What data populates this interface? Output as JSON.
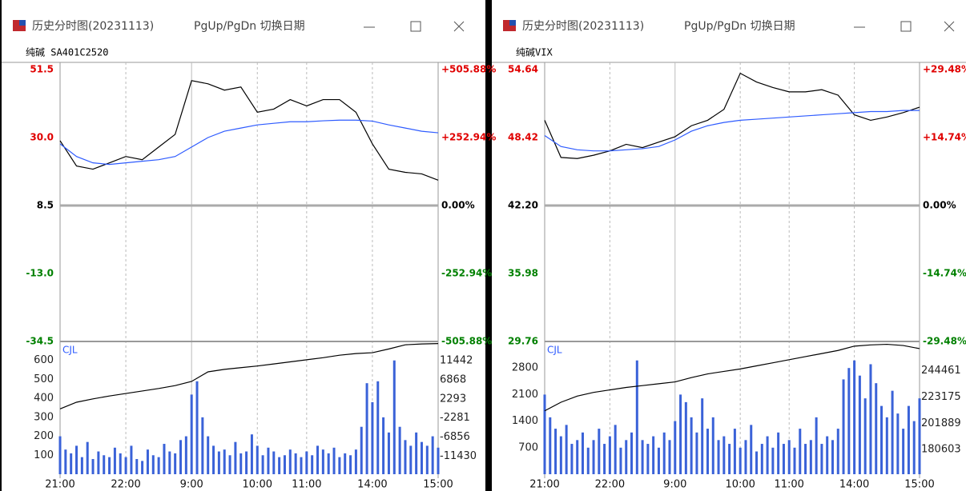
{
  "windows": [
    {
      "title": "历史分时图(20231113)",
      "hint": "PgUp/PgDn 切换日期"
    },
    {
      "title": "历史分时图(20231113)",
      "hint": "PgUp/PgDn 切换日期"
    }
  ],
  "chart_data": [
    {
      "type": "line",
      "subtitle": "纯碱 SA401C2520",
      "x": [
        0,
        15,
        30,
        45,
        60,
        75,
        90,
        105,
        120,
        135,
        150,
        165,
        180,
        195,
        210,
        225,
        240,
        255,
        270,
        285,
        300,
        315,
        330,
        345
      ],
      "xlim": [
        0,
        345
      ],
      "xticks": [
        {
          "value": 0,
          "label": "21:00"
        },
        {
          "value": 60,
          "label": "22:00"
        },
        {
          "value": 120,
          "label": "9:00"
        },
        {
          "value": 180,
          "label": "10:00"
        },
        {
          "value": 225,
          "label": "11:00"
        },
        {
          "value": 285,
          "label": "14:00"
        },
        {
          "value": 345,
          "label": "15:00"
        }
      ],
      "ylim": [
        -34.5,
        51.5
      ],
      "yticks": [
        51.5,
        {
          "value": 30,
          "label": "30.0"
        },
        8.5,
        {
          "value": -13,
          "label": "-13.0"
        },
        -34.5
      ],
      "y2lim": [
        -505.88,
        505.88
      ],
      "y2ticks": [
        {
          "value": 505.88,
          "label": "+505.88%"
        },
        {
          "value": 252.94,
          "label": "+252.94%"
        },
        {
          "value": 0,
          "label": "0.00%"
        },
        {
          "value": -252.94,
          "label": "-252.94%"
        },
        {
          "value": -505.88,
          "label": "-505.88%"
        }
      ],
      "grid": "x",
      "series": [
        {
          "color": "#000000",
          "values": [
            29,
            21,
            20,
            22,
            24,
            23,
            27,
            31,
            48,
            47,
            45,
            46,
            38,
            39,
            42,
            40,
            42,
            42,
            38,
            28,
            20,
            19,
            18.5,
            16.5
          ]
        },
        {
          "color": "#2e5bff",
          "values": [
            28,
            24,
            22,
            21.5,
            22,
            22.5,
            23,
            24,
            27,
            30,
            32,
            33,
            34,
            34.5,
            35,
            35,
            35.3,
            35.5,
            35.5,
            35.2,
            34,
            33,
            32,
            31.5
          ]
        }
      ],
      "volume": {
        "label": "CJL",
        "color": "#3a62d8",
        "ylim": [
          0,
          700
        ],
        "yticks": [
          600,
          500,
          400,
          300,
          200,
          100
        ],
        "y2lim": [
          -15800,
          16100
        ],
        "y2ticks": [
          11442,
          6868,
          2293,
          -2281,
          -6856,
          -11430
        ],
        "x": [
          0,
          5,
          10,
          15,
          20,
          25,
          30,
          35,
          40,
          45,
          50,
          55,
          60,
          65,
          70,
          75,
          80,
          85,
          90,
          95,
          100,
          105,
          110,
          115,
          120,
          125,
          130,
          135,
          140,
          145,
          150,
          155,
          160,
          165,
          170,
          175,
          180,
          185,
          190,
          195,
          200,
          205,
          210,
          215,
          220,
          225,
          230,
          235,
          240,
          245,
          250,
          255,
          260,
          265,
          270,
          275,
          280,
          285,
          290,
          295,
          300,
          305,
          310,
          315,
          320,
          325,
          330,
          335,
          340,
          345
        ],
        "values": [
          200,
          130,
          110,
          150,
          90,
          170,
          80,
          120,
          100,
          90,
          140,
          110,
          90,
          150,
          80,
          70,
          130,
          100,
          90,
          160,
          120,
          110,
          180,
          200,
          420,
          490,
          300,
          200,
          150,
          120,
          130,
          100,
          170,
          110,
          120,
          210,
          150,
          100,
          140,
          120,
          90,
          100,
          130,
          110,
          90,
          120,
          100,
          150,
          130,
          110,
          140,
          90,
          110,
          100,
          130,
          250,
          480,
          380,
          490,
          300,
          220,
          600,
          250,
          180,
          150,
          220,
          170,
          150,
          200,
          140
        ],
        "line": {
          "color": "#000000",
          "values": [
            -100,
            1500,
            2300,
            3000,
            3600,
            4200,
            4800,
            5500,
            6500,
            8800,
            9400,
            9800,
            10200,
            10700,
            11200,
            11700,
            12200,
            12800,
            13200,
            13400,
            14300,
            15300,
            15500,
            15600
          ]
        }
      }
    },
    {
      "type": "line",
      "subtitle": "纯碱VIX",
      "x": [
        0,
        15,
        30,
        45,
        60,
        75,
        90,
        105,
        120,
        135,
        150,
        165,
        180,
        195,
        210,
        225,
        240,
        255,
        270,
        285,
        300,
        315,
        330,
        345
      ],
      "xlim": [
        0,
        345
      ],
      "xticks": [
        {
          "value": 0,
          "label": "21:00"
        },
        {
          "value": 60,
          "label": "22:00"
        },
        {
          "value": 120,
          "label": "9:00"
        },
        {
          "value": 180,
          "label": "10:00"
        },
        {
          "value": 225,
          "label": "11:00"
        },
        {
          "value": 285,
          "label": "14:00"
        },
        {
          "value": 345,
          "label": "15:00"
        }
      ],
      "ylim": [
        29.76,
        54.64
      ],
      "yticks": [
        54.64,
        48.42,
        {
          "value": 42.2,
          "label": "42.20"
        },
        35.98,
        29.76
      ],
      "y2lim": [
        -29.48,
        29.48
      ],
      "y2ticks": [
        {
          "value": 29.48,
          "label": "+29.48%"
        },
        {
          "value": 14.74,
          "label": "+14.74%"
        },
        {
          "value": 0,
          "label": "0.00%"
        },
        {
          "value": -14.74,
          "label": "-14.74%"
        },
        {
          "value": -29.48,
          "label": "-29.48%"
        }
      ],
      "grid": "x",
      "series": [
        {
          "color": "#000000",
          "values": [
            50,
            46.6,
            46.5,
            46.8,
            47.2,
            47.8,
            47.5,
            48,
            48.5,
            49.5,
            50,
            51,
            54.3,
            53.5,
            53,
            52.6,
            52.6,
            52.8,
            52.3,
            50.5,
            50,
            50.3,
            50.7,
            51.2
          ]
        },
        {
          "color": "#2e5bff",
          "values": [
            48.6,
            47.6,
            47.3,
            47.2,
            47.2,
            47.3,
            47.4,
            47.6,
            48.2,
            49,
            49.5,
            49.8,
            50,
            50.1,
            50.2,
            50.3,
            50.4,
            50.5,
            50.6,
            50.7,
            50.8,
            50.8,
            50.9,
            50.9
          ]
        }
      ],
      "volume": {
        "label": "CJL",
        "color": "#3a62d8",
        "ylim": [
          0,
          3500
        ],
        "yticks": [
          2800,
          2100,
          1400,
          700
        ],
        "y2lim": [
          160600,
          268300
        ],
        "y2ticks": [
          244461,
          223175,
          201889,
          180603
        ],
        "x": [
          0,
          5,
          10,
          15,
          20,
          25,
          30,
          35,
          40,
          45,
          50,
          55,
          60,
          65,
          70,
          75,
          80,
          85,
          90,
          95,
          100,
          105,
          110,
          115,
          120,
          125,
          130,
          135,
          140,
          145,
          150,
          155,
          160,
          165,
          170,
          175,
          180,
          185,
          190,
          195,
          200,
          205,
          210,
          215,
          220,
          225,
          230,
          235,
          240,
          245,
          250,
          255,
          260,
          265,
          270,
          275,
          280,
          285,
          290,
          295,
          300,
          305,
          310,
          315,
          320,
          325,
          330,
          335,
          340,
          345
        ],
        "values": [
          2100,
          1500,
          1200,
          1000,
          1300,
          800,
          900,
          1100,
          700,
          900,
          1200,
          800,
          1000,
          1300,
          700,
          900,
          1100,
          3000,
          900,
          800,
          1000,
          700,
          1100,
          900,
          1400,
          2100,
          1900,
          1500,
          1100,
          2000,
          1200,
          1500,
          900,
          1000,
          800,
          1200,
          700,
          900,
          1300,
          600,
          800,
          1000,
          700,
          1100,
          800,
          900,
          700,
          1200,
          800,
          900,
          1500,
          800,
          1000,
          900,
          1200,
          2500,
          2800,
          3000,
          2600,
          2000,
          2900,
          2400,
          1800,
          1500,
          2200,
          1600,
          1200,
          1800,
          1400,
          2000
        ],
        "line": {
          "color": "#000000",
          "values": [
            212000,
            219000,
            224000,
            227000,
            229000,
            231000,
            232500,
            234000,
            235500,
            239000,
            242000,
            244000,
            246000,
            248500,
            251000,
            253500,
            256000,
            258500,
            261000,
            264500,
            265500,
            266000,
            265000,
            262500
          ]
        }
      }
    }
  ]
}
